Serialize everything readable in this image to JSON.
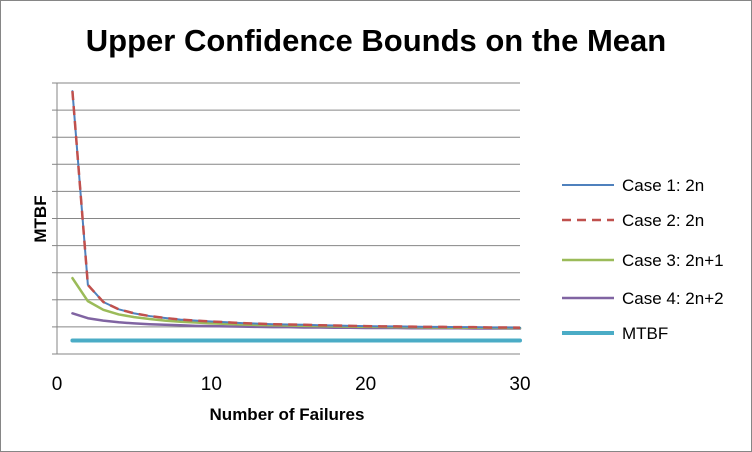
{
  "chart_data": {
    "type": "line",
    "title": "Upper Confidence Bounds on the Mean",
    "xlabel": "Number of Failures",
    "ylabel": "MTBF",
    "xlim": [
      0,
      30
    ],
    "ylim": [
      0,
      100
    ],
    "x_ticks": [
      0,
      10,
      20,
      30
    ],
    "y_tick_labels_shown": false,
    "grid": "horizontal",
    "legend_position": "right",
    "x": [
      1,
      2,
      3,
      4,
      5,
      6,
      7,
      8,
      9,
      10,
      11,
      12,
      13,
      14,
      15,
      16,
      17,
      18,
      19,
      20,
      21,
      22,
      23,
      24,
      25,
      26,
      27,
      28,
      29,
      30
    ],
    "series": [
      {
        "name": "Case 1: 2n",
        "color": "#4F81BD",
        "dash": "solid",
        "values": [
          97,
          25.5,
          19.2,
          16.5,
          15.0,
          14.0,
          13.3,
          12.7,
          12.3,
          12.0,
          11.7,
          11.4,
          11.2,
          11.0,
          10.9,
          10.8,
          10.6,
          10.5,
          10.4,
          10.3,
          10.2,
          10.2,
          10.1,
          10.0,
          10.0,
          9.9,
          9.9,
          9.8,
          9.8,
          9.7
        ]
      },
      {
        "name": "Case 2: 2n",
        "color": "#C0504D",
        "dash": "dashed",
        "values": [
          97,
          25.5,
          19.2,
          16.5,
          15.0,
          14.0,
          13.3,
          12.7,
          12.3,
          12.0,
          11.7,
          11.4,
          11.2,
          11.0,
          10.9,
          10.8,
          10.6,
          10.5,
          10.4,
          10.3,
          10.2,
          10.2,
          10.1,
          10.0,
          10.0,
          9.9,
          9.9,
          9.8,
          9.8,
          9.7
        ]
      },
      {
        "name": "Case 3: 2n+1",
        "color": "#9BBB59",
        "dash": "solid",
        "values": [
          28,
          19.5,
          16.3,
          14.6,
          13.6,
          12.9,
          12.3,
          11.9,
          11.6,
          11.3,
          11.1,
          10.9,
          10.7,
          10.6,
          10.5,
          10.4,
          10.3,
          10.2,
          10.1,
          10.0,
          10.0,
          9.9,
          9.9,
          9.8,
          9.8,
          9.7,
          9.7,
          9.7,
          9.6,
          9.6
        ]
      },
      {
        "name": "Case 4: 2n+2",
        "color": "#8064A2",
        "dash": "solid",
        "values": [
          15,
          13.2,
          12.3,
          11.7,
          11.3,
          11.0,
          10.8,
          10.6,
          10.4,
          10.3,
          10.2,
          10.1,
          10.0,
          9.9,
          9.9,
          9.8,
          9.8,
          9.7,
          9.7,
          9.6,
          9.6,
          9.6,
          9.5,
          9.5,
          9.5,
          9.5,
          9.4,
          9.4,
          9.4,
          9.4
        ]
      },
      {
        "name": "MTBF",
        "color": "#4BACC6",
        "dash": "solid",
        "values": [
          5,
          5,
          5,
          5,
          5,
          5,
          5,
          5,
          5,
          5,
          5,
          5,
          5,
          5,
          5,
          5,
          5,
          5,
          5,
          5,
          5,
          5,
          5,
          5,
          5,
          5,
          5,
          5,
          5,
          5
        ]
      }
    ]
  }
}
